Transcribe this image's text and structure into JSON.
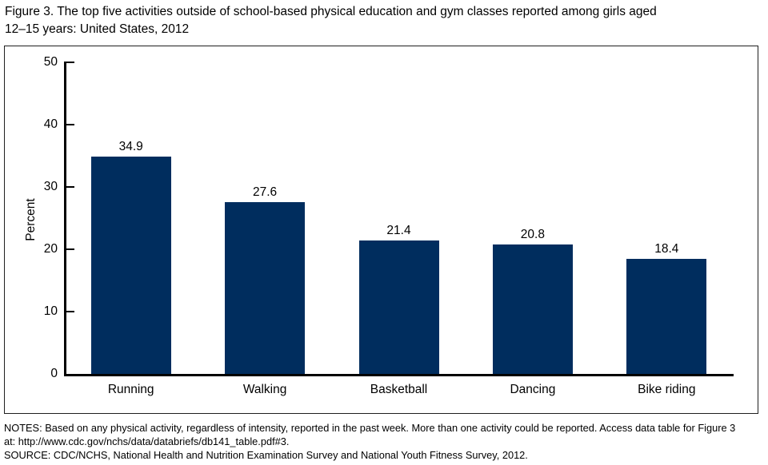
{
  "header": {
    "title_line1": "Figure 3. The top five activities outside of school-based physical education and gym classes reported among girls aged",
    "title_line2": "12–15 years: United States, 2012"
  },
  "chart_data": {
    "type": "bar",
    "title": "Figure 3. The top five activities outside of school-based physical education and gym classes reported among girls aged 12–15 years: United States, 2012",
    "categories": [
      "Running",
      "Walking",
      "Basketball",
      "Dancing",
      "Bike riding"
    ],
    "values": [
      34.9,
      27.6,
      21.4,
      20.8,
      18.4
    ],
    "xlabel": "",
    "ylabel": "Percent",
    "ylim": [
      0,
      50
    ],
    "yticks": [
      0,
      10,
      20,
      30,
      40,
      50
    ],
    "grid": false,
    "legend": "none",
    "bar_color": "#002d5e",
    "axis_color": "#000000"
  },
  "footer": {
    "notes_line1": "NOTES: Based on any physical activity, regardless of intensity, reported in the past week. More than one activity could be reported. Access data table for Figure 3",
    "notes_line2": "at: http://www.cdc.gov/nchs/data/databriefs/db141_table.pdf#3.",
    "source": "SOURCE: CDC/NCHS, National Health and Nutrition Examination Survey and National Youth Fitness Survey, 2012."
  }
}
